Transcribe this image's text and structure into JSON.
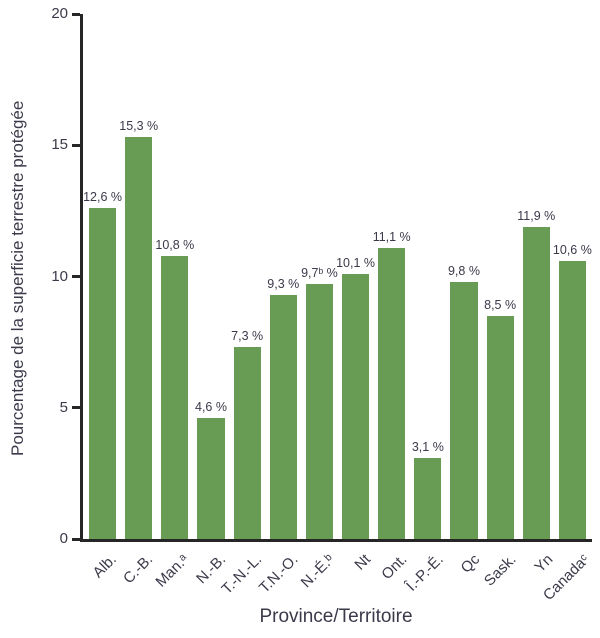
{
  "chart_data": {
    "type": "bar",
    "title": "",
    "xlabel": "Province/Territoire",
    "ylabel": "Pourcentage de la superficie terrestre protégée",
    "ylim": [
      0,
      20
    ],
    "yticks": [
      0,
      5,
      10,
      15,
      20
    ],
    "categories": [
      "Alb.",
      "C.-B.",
      "Man.ᵃ",
      "N.-B.",
      "T.-N.-L.",
      "T.N.-O.",
      "N.-É.ᵇ",
      "Nt",
      "Ont.",
      "Î.-P.-É.",
      "Qc",
      "Sask.",
      "Yn",
      "Canadaᶜ"
    ],
    "values": [
      12.6,
      15.3,
      10.8,
      4.6,
      7.3,
      9.3,
      9.7,
      10.1,
      11.1,
      3.1,
      9.8,
      8.5,
      11.9,
      10.6
    ],
    "value_labels": [
      "12,6 %",
      "15,3 %",
      "10,8 %",
      "4,6 %",
      "7,3 %",
      "9,3 %",
      "9,7ᵇ %",
      "10,1 %",
      "11,1 %",
      "3,1 %",
      "9,8 %",
      "8,5 %",
      "11,9 %",
      "10,6 %"
    ],
    "grid": false,
    "legend": null,
    "colors": {
      "bar": "#689b53",
      "text": "#3a3a4a",
      "axis": "#262626"
    }
  }
}
